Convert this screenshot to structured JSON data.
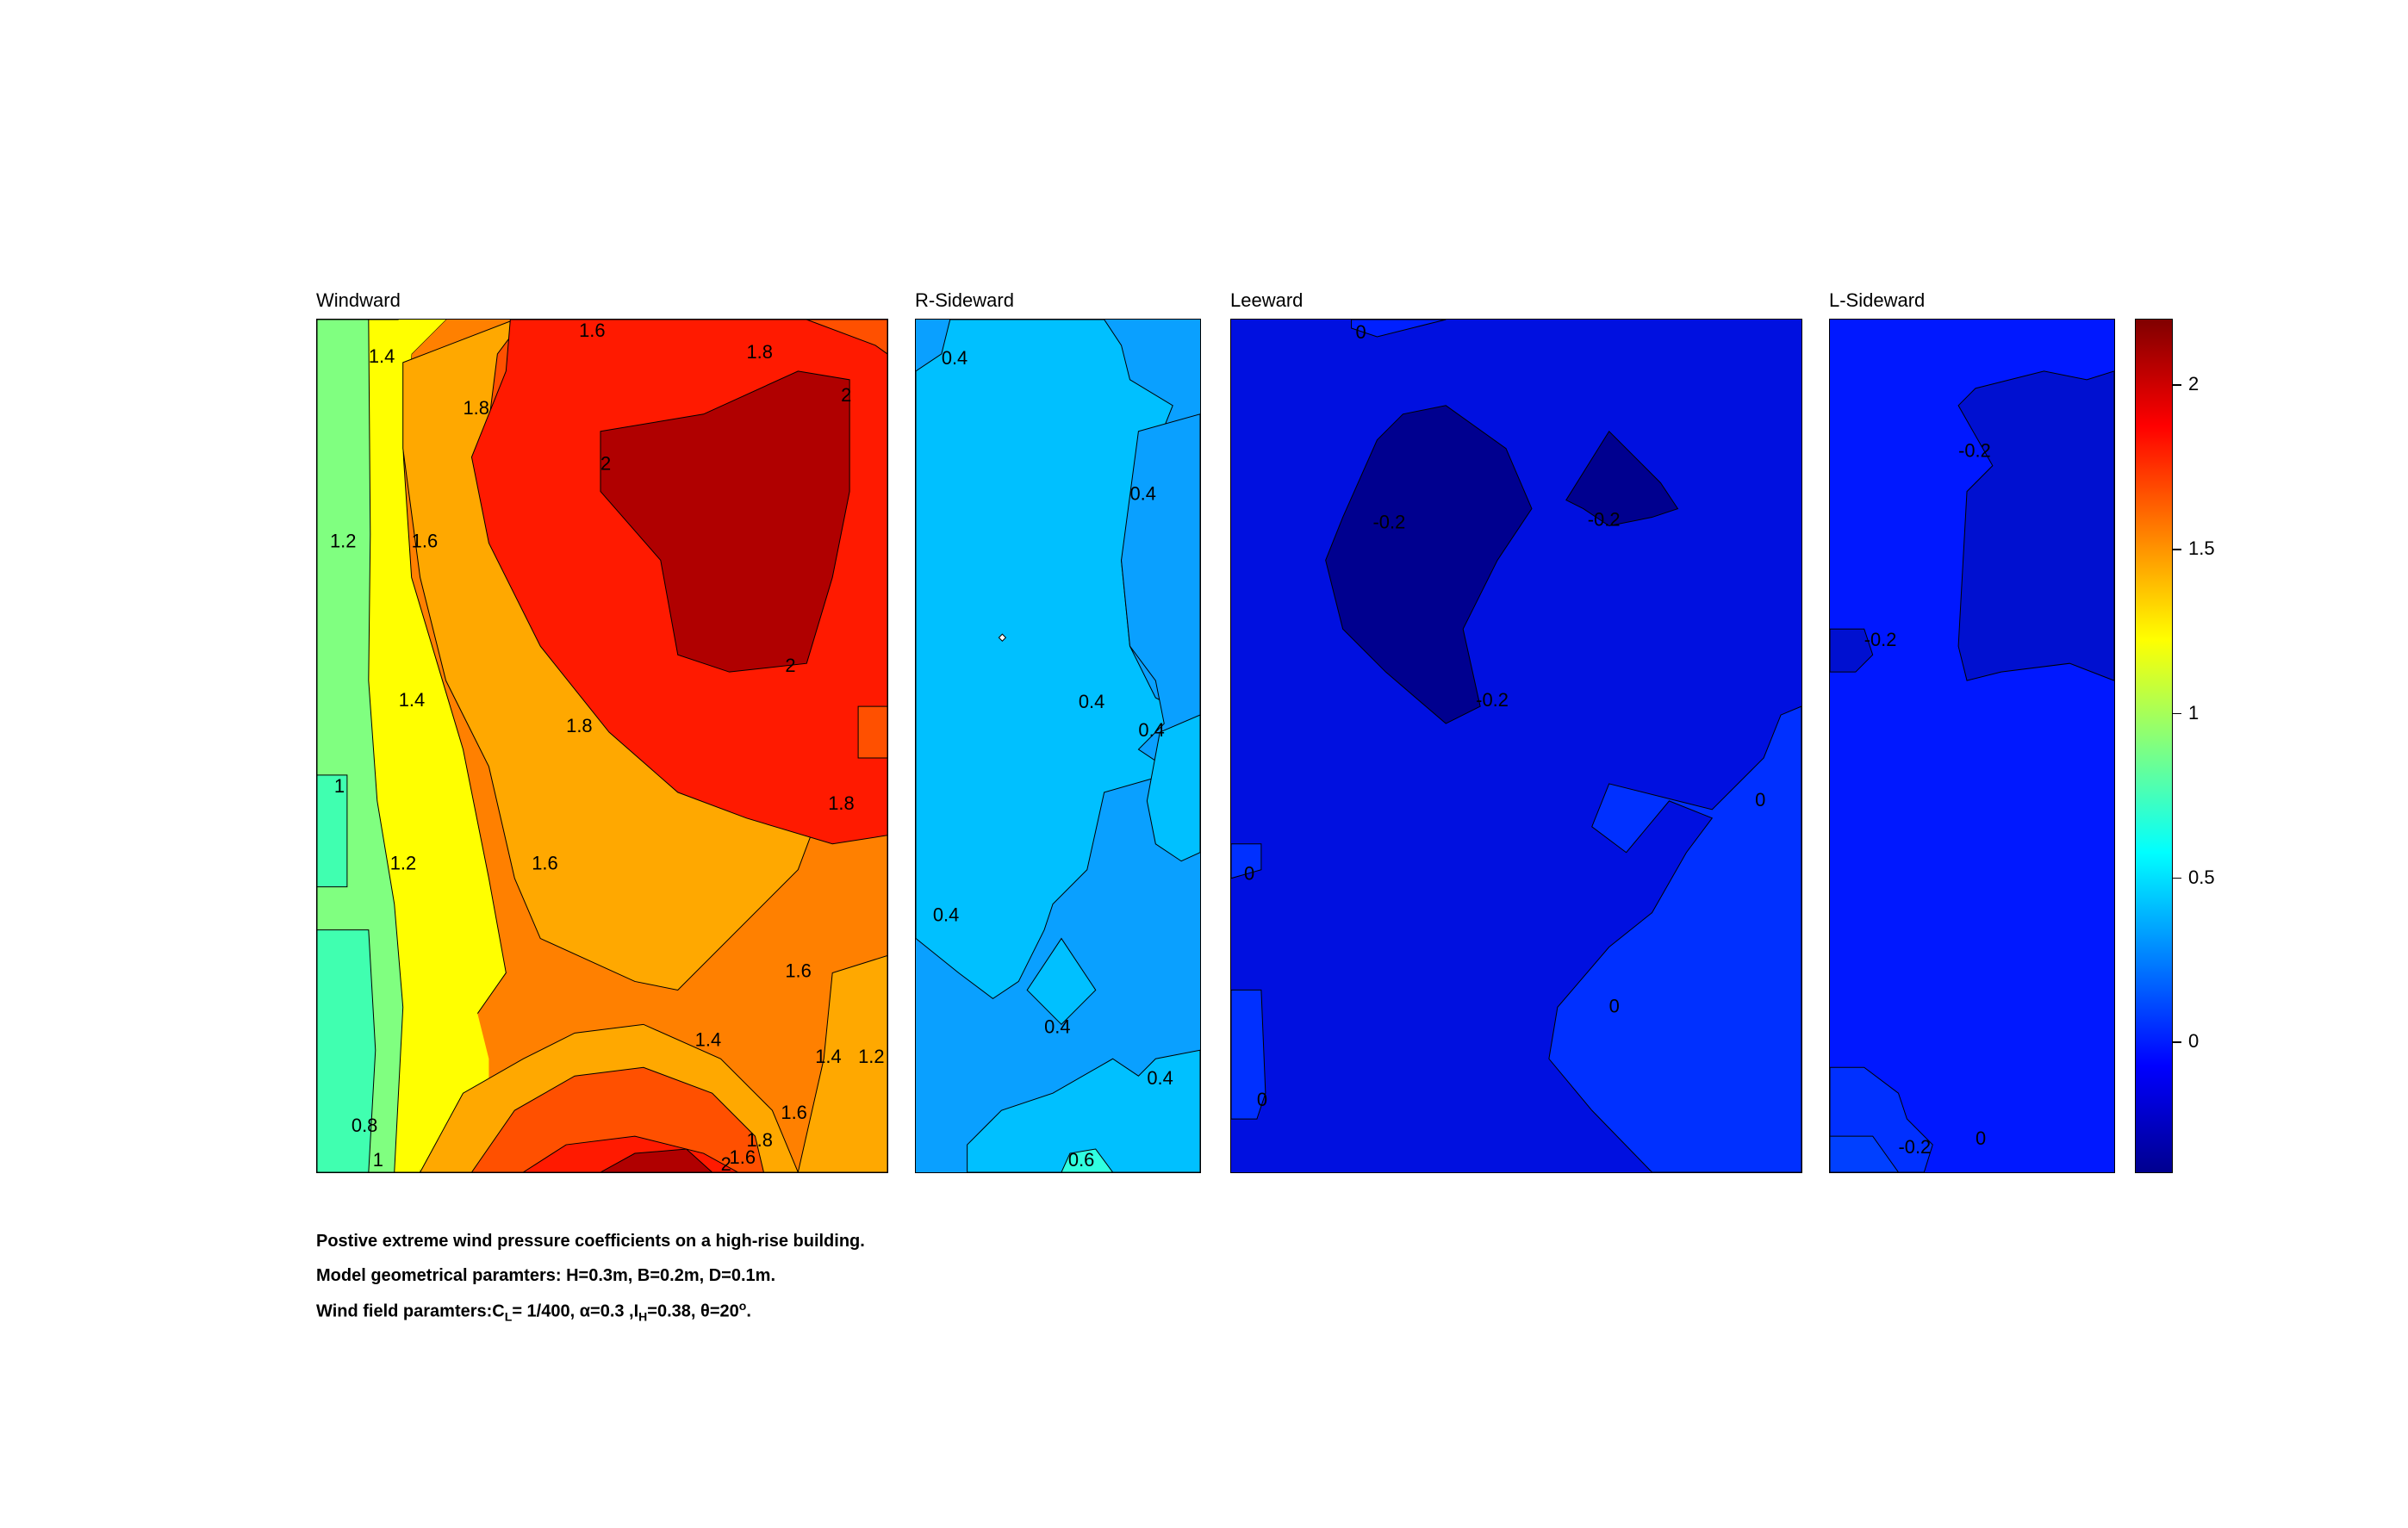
{
  "chart_data": {
    "type": "heatmap",
    "subtype": "filled-contour",
    "colormap": "jet",
    "clim": [
      -0.4,
      2.2
    ],
    "panels": [
      {
        "title": "Windward",
        "contour_labels": [
          "1.4",
          "1.6",
          "1.8",
          "1.8",
          "2",
          "2",
          "2",
          "1.2",
          "1.6",
          "1.4",
          "1.8",
          "1.8",
          "1",
          "1.6",
          "1.2",
          "1.6",
          "1.4",
          "1.4",
          "1.2",
          "0.8",
          "1",
          "1.6",
          "1.8",
          "1.6",
          "2"
        ],
        "levels": [
          {
            "value": 0.8
          },
          {
            "value": 1.0
          },
          {
            "value": 1.2
          },
          {
            "value": 1.4
          },
          {
            "value": 1.6
          },
          {
            "value": 1.8
          },
          {
            "value": 2.0
          },
          {
            "value": 2.1
          }
        ]
      },
      {
        "title": "R-Sideward",
        "contour_labels": [
          "0.4",
          "0.4",
          "0.4",
          "0.4",
          "0.4",
          "0.4",
          "0.4",
          "0.6"
        ],
        "levels": [
          {
            "value": 0.2
          },
          {
            "value": 0.4
          },
          {
            "value": 0.5
          },
          {
            "value": 0.6
          }
        ]
      },
      {
        "title": "Leeward",
        "contour_labels": [
          "0",
          "-0.2",
          "-0.2",
          "-0.2",
          "0",
          "0",
          "0",
          "0"
        ],
        "levels": [
          {
            "value": -0.3
          },
          {
            "value": -0.1
          },
          {
            "value": 0.0
          }
        ]
      },
      {
        "title": "L-Sideward",
        "contour_labels": [
          "-0.2",
          "-0.2",
          "-0.2",
          "0"
        ],
        "levels": [
          {
            "value": -0.2
          },
          {
            "value": -0.1
          },
          {
            "value": 0.0
          }
        ]
      }
    ],
    "colorbar": {
      "ticks": [
        {
          "value": 0,
          "label": "0"
        },
        {
          "value": 0.5,
          "label": "0.5"
        },
        {
          "value": 1,
          "label": "1"
        },
        {
          "value": 1.5,
          "label": "1.5"
        },
        {
          "value": 2,
          "label": "2"
        }
      ]
    }
  },
  "caption": {
    "line1": "Postive extreme  wind pressure coefficients on a high-rise building.",
    "line2": "Model geometrical paramters: H=0.3m, B=0.2m, D=0.1m.",
    "line3": {
      "prefix": "Wind field paramters:C",
      "cl_sub": "L",
      "cl_value": "= 1/400, ",
      "alpha": "α=0.3 ,I",
      "ih_sub": "H",
      "ih_value": "=0.38, θ=20",
      "deg_sup": "o",
      "suffix": "."
    }
  }
}
